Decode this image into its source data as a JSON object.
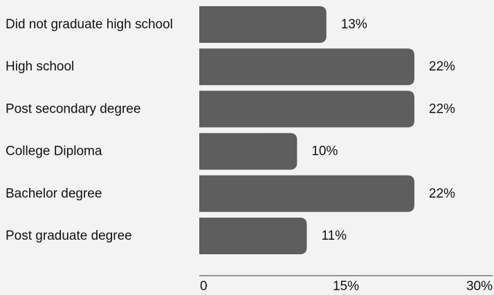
{
  "chart_data": {
    "type": "bar",
    "orientation": "horizontal",
    "categories": [
      "Did not graduate high school",
      "High school",
      "Post secondary degree",
      "College Diploma",
      "Bachelor degree",
      "Post graduate degree"
    ],
    "values": [
      13,
      22,
      22,
      10,
      22,
      11
    ],
    "value_labels": [
      "13%",
      "22%",
      "22%",
      "10%",
      "22%",
      "11%"
    ],
    "xlim": [
      0,
      30
    ],
    "x_ticks": [
      0,
      15,
      30
    ],
    "x_tick_labels": [
      "0",
      "15%",
      "30%"
    ],
    "grid": false,
    "legend": "none",
    "bar_color": "#5e5e5e",
    "background_color": "#f3f3f3"
  }
}
